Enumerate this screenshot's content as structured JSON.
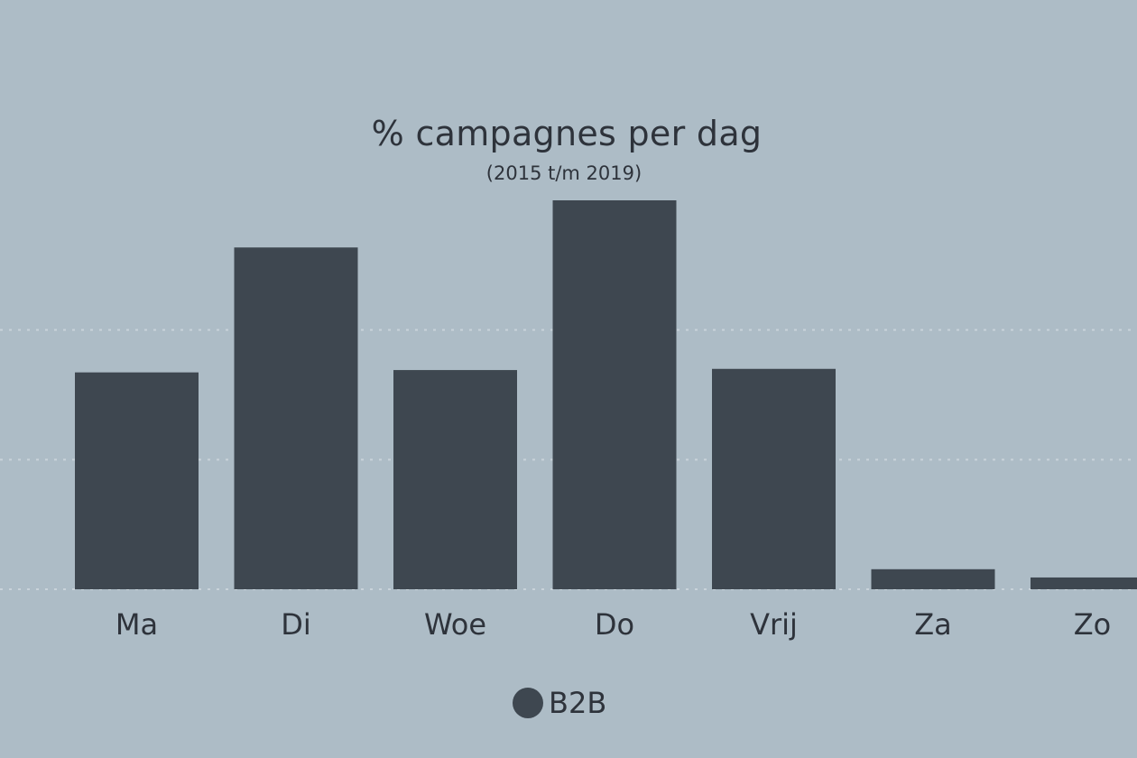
{
  "chart_data": {
    "type": "bar",
    "title": "% campagnes per dag",
    "subtitle": "(2015 t/m 2019)",
    "categories": [
      "Ma",
      "Di",
      "Woe",
      "Do",
      "Vrij",
      "Za",
      "Zo"
    ],
    "series": [
      {
        "name": "B2B",
        "values": [
          18.4,
          29.0,
          18.6,
          33.0,
          18.7,
          1.7,
          1.0
        ]
      }
    ],
    "xlabel": "",
    "ylabel": "",
    "ylim": [
      0,
      36
    ],
    "y_axis_visible": false,
    "gridlines": "dotted horizontal",
    "legend_position": "bottom-center",
    "colors": {
      "bar": "#3e4750",
      "background": "#adbcc6",
      "grid": "#c9d3da",
      "text": "#2e333b"
    }
  }
}
